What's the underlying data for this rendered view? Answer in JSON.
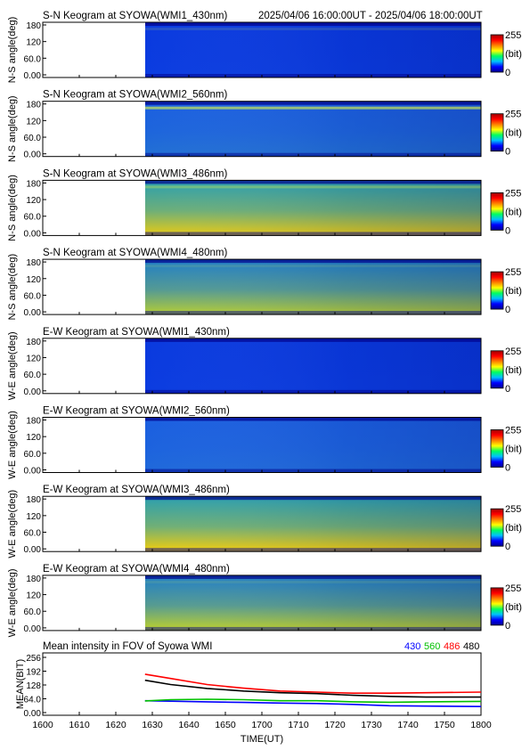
{
  "header": {
    "time_range": "2025/04/06 16:00:00UT - 2025/04/06 18:00:00UT"
  },
  "colorbar": {
    "max_label": "255",
    "unit_label": "(bit)",
    "min_label": "0",
    "stops": [
      "#000090",
      "#0000ff",
      "#00c0ff",
      "#00ff60",
      "#ffff00",
      "#ff8000",
      "#ff0000",
      "#a00000"
    ]
  },
  "keograms": [
    {
      "title": "S-N Keogram at SYOWA(WMI1_430nm)",
      "ylabel": "N-S angle(deg)",
      "yticks": [
        "180",
        "120",
        "60.0",
        "0.00"
      ],
      "base": "#0a3adf",
      "hot": "#1d6ef0",
      "gradient": 0.05,
      "top_band": 0.12
    },
    {
      "title": "S-N Keogram at SYOWA(WMI2_560nm)",
      "ylabel": "N-S angle(deg)",
      "yticks": [
        "180",
        "120",
        "60.0",
        "0.00"
      ],
      "base": "#1b5fe0",
      "hot": "#3fb7a0",
      "gradient": 0.2,
      "top_band": 0.6
    },
    {
      "title": "S-N Keogram at SYOWA(WMI3_486nm)",
      "ylabel": "N-S angle(deg)",
      "yticks": [
        "180",
        "120",
        "60.0",
        "0.00"
      ],
      "base": "#2a9fb0",
      "hot": "#ffd000",
      "gradient": 0.9,
      "top_band": 0.3
    },
    {
      "title": "S-N Keogram at SYOWA(WMI4_480nm)",
      "ylabel": "N-S angle(deg)",
      "yticks": [
        "180",
        "120",
        "60.0",
        "0.00"
      ],
      "base": "#1f7ec8",
      "hot": "#e8e800",
      "gradient": 0.75,
      "top_band": 0.1
    },
    {
      "title": "E-W Keogram at SYOWA(WMI1_430nm)",
      "ylabel": "W-E angle(deg)",
      "yticks": [
        "180",
        "120",
        "60.0",
        "0.00"
      ],
      "base": "#0a3adf",
      "hot": "#1d6ef0",
      "gradient": 0.05,
      "top_band": 0.0
    },
    {
      "title": "E-W Keogram at SYOWA(WMI2_560nm)",
      "ylabel": "W-E angle(deg)",
      "yticks": [
        "180",
        "120",
        "60.0",
        "0.00"
      ],
      "base": "#1b5fe0",
      "hot": "#3aa8b8",
      "gradient": 0.15,
      "top_band": 0.0
    },
    {
      "title": "E-W Keogram at SYOWA(WMI3_486nm)",
      "ylabel": "W-E angle(deg)",
      "yticks": [
        "180",
        "120",
        "60.0",
        "0.00"
      ],
      "base": "#2a9fb0",
      "hot": "#ffd000",
      "gradient": 0.95,
      "top_band": 0.0
    },
    {
      "title": "E-W Keogram at SYOWA(WMI4_480nm)",
      "ylabel": "W-E angle(deg)",
      "yticks": [
        "180",
        "120",
        "60.0",
        "0.00"
      ],
      "base": "#1f7ec8",
      "hot": "#e8e800",
      "gradient": 0.8,
      "top_band": 0.1
    }
  ],
  "chart_data": {
    "type": "line",
    "title": "Mean intensity in FOV of Syowa WMI",
    "xlabel": "TIME(UT)",
    "ylabel": "MEAN(BIT)",
    "x_ticks": [
      "1600",
      "1610",
      "1620",
      "1630",
      "1640",
      "1650",
      "1700",
      "1710",
      "1720",
      "1730",
      "1740",
      "1750",
      "1800"
    ],
    "y_ticks": [
      "256",
      "192",
      "128",
      "64.0",
      "0.00"
    ],
    "xlim": [
      0,
      120
    ],
    "ylim": [
      0,
      256
    ],
    "legend_placement": "top-right",
    "x_minutes_after_1600": [
      28,
      35,
      45,
      55,
      65,
      75,
      85,
      95,
      105,
      120
    ],
    "series": [
      {
        "name": "430",
        "color": "#0000ff",
        "values": [
          55,
          53,
          50,
          47,
          44,
          42,
          38,
          32,
          30,
          28
        ]
      },
      {
        "name": "560",
        "color": "#00c000",
        "values": [
          54,
          60,
          62,
          60,
          55,
          55,
          50,
          48,
          50,
          52
        ]
      },
      {
        "name": "486",
        "color": "#ff0000",
        "values": [
          178,
          158,
          130,
          113,
          100,
          95,
          90,
          90,
          92,
          95
        ]
      },
      {
        "name": "480",
        "color": "#000000",
        "values": [
          150,
          130,
          112,
          100,
          92,
          88,
          80,
          75,
          72,
          72
        ]
      }
    ]
  }
}
